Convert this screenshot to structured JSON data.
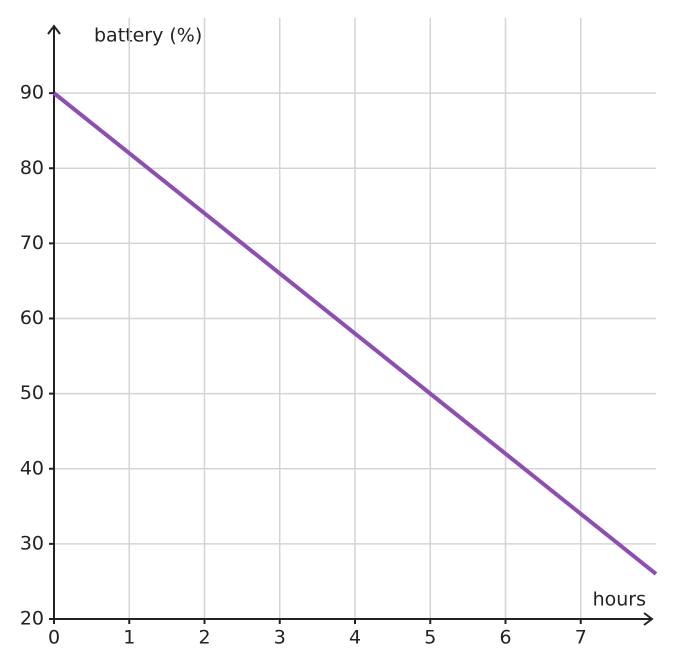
{
  "chart_data": {
    "type": "line",
    "x_label": "hours",
    "y_label": "battery (%)",
    "x": [
      0,
      1,
      2,
      3,
      4,
      5,
      6,
      7,
      8
    ],
    "series": [
      {
        "name": "battery",
        "color": "#8e4db3",
        "values": [
          90,
          82,
          74,
          66,
          58,
          50,
          42,
          34,
          26
        ]
      }
    ],
    "xlim": [
      0,
      8
    ],
    "ylim": [
      20,
      100
    ],
    "xticks": [
      0,
      1,
      2,
      3,
      4,
      5,
      6,
      7
    ],
    "yticks": [
      20,
      30,
      40,
      50,
      60,
      70,
      80,
      90
    ],
    "grid": true
  }
}
